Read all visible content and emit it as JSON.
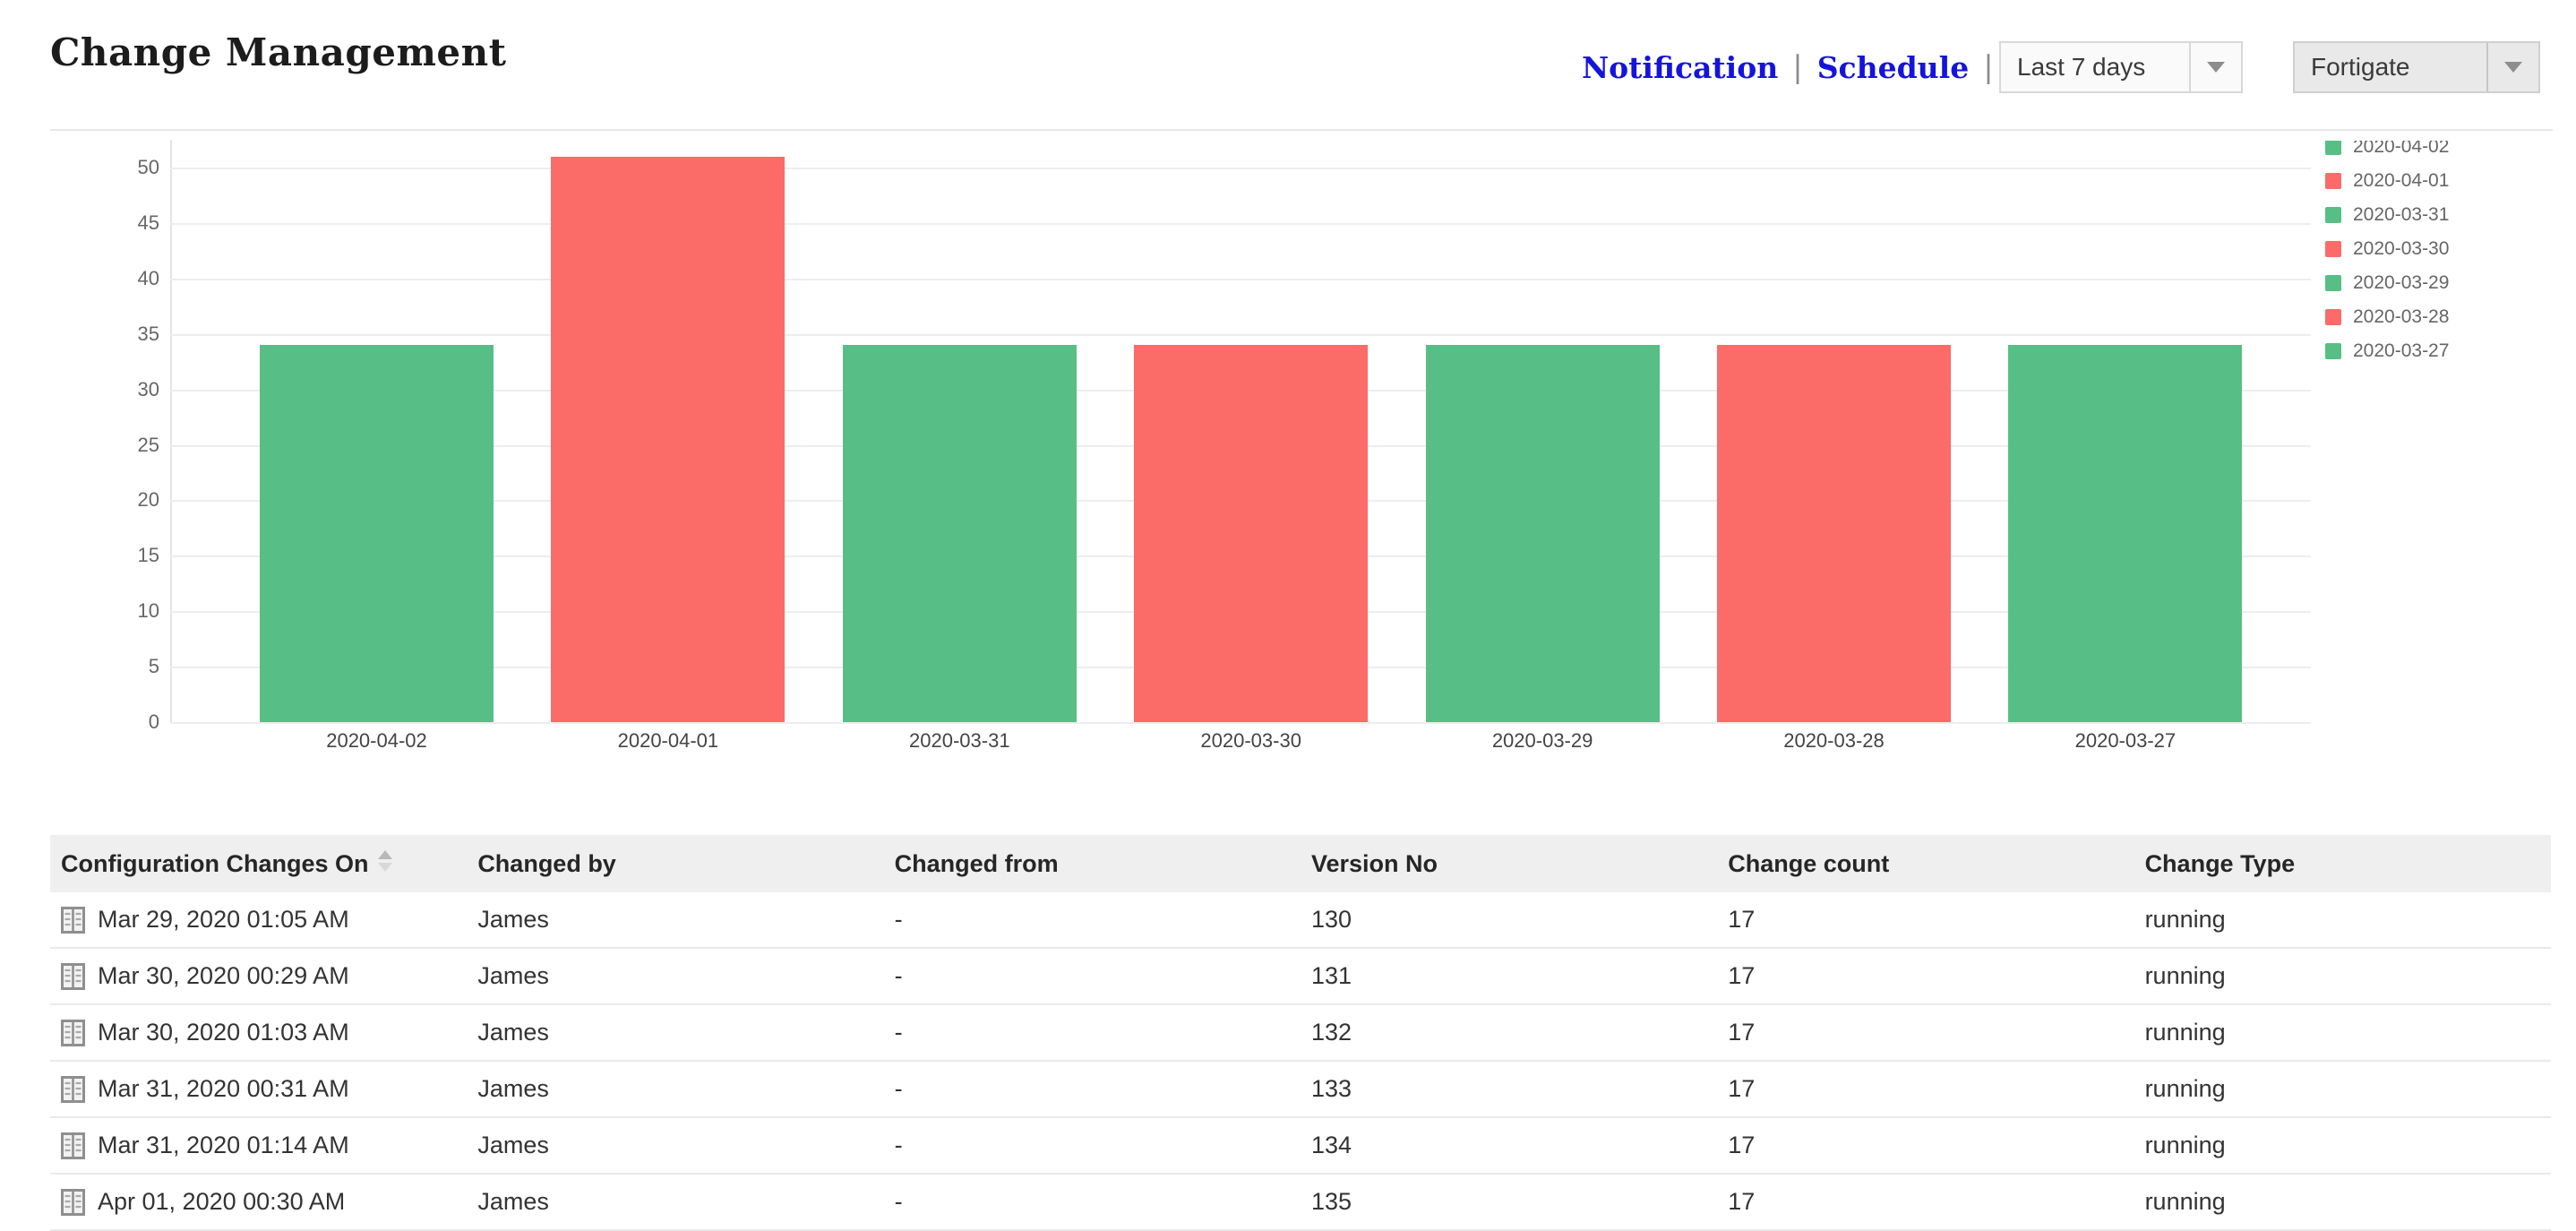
{
  "header": {
    "title": "Change Management",
    "links": [
      {
        "label": "Notification"
      },
      {
        "label": "Schedule"
      }
    ],
    "separator": "|",
    "pdf_icon": "pdf-export-icon",
    "link_color": "#1414db",
    "period_select": {
      "value": "Last 7 days"
    },
    "device_select": {
      "value": "Fortigate"
    }
  },
  "chart_data": {
    "type": "bar",
    "title": "",
    "xlabel": "",
    "ylabel": "",
    "categories": [
      "2020-04-02",
      "2020-04-01",
      "2020-03-31",
      "2020-03-30",
      "2020-03-29",
      "2020-03-28",
      "2020-03-27"
    ],
    "values": [
      34,
      51,
      34,
      34,
      34,
      34,
      34
    ],
    "bar_colors": [
      "#57BF86",
      "#FB6B67",
      "#57BF86",
      "#FB6B67",
      "#57BF86",
      "#FB6B67",
      "#57BF86"
    ],
    "yticks": [
      0,
      5,
      10,
      15,
      20,
      25,
      30,
      35,
      40,
      45,
      50
    ],
    "ylim": [
      0,
      53
    ],
    "grid": true,
    "legend_position": "right",
    "legend": [
      {
        "label": "2020-04-02",
        "color": "#57BF86"
      },
      {
        "label": "2020-04-01",
        "color": "#FB6B67"
      },
      {
        "label": "2020-03-31",
        "color": "#57BF86"
      },
      {
        "label": "2020-03-30",
        "color": "#FB6B67"
      },
      {
        "label": "2020-03-29",
        "color": "#57BF86"
      },
      {
        "label": "2020-03-28",
        "color": "#FB6B67"
      },
      {
        "label": "2020-03-27",
        "color": "#57BF86"
      }
    ]
  },
  "table": {
    "columns": [
      "Configuration Changes On",
      "Changed by",
      "Changed from",
      "Version No",
      "Change count",
      "Change Type"
    ],
    "sorted_column": "Configuration Changes On",
    "rows": [
      {
        "changes_on": "Mar 29, 2020 01:05 AM",
        "changed_by": "James",
        "changed_from": "-",
        "version_no": "130",
        "change_count": "17",
        "change_type": "running"
      },
      {
        "changes_on": "Mar 30, 2020 00:29 AM",
        "changed_by": "James",
        "changed_from": "-",
        "version_no": "131",
        "change_count": "17",
        "change_type": "running"
      },
      {
        "changes_on": "Mar 30, 2020 01:03 AM",
        "changed_by": "James",
        "changed_from": "-",
        "version_no": "132",
        "change_count": "17",
        "change_type": "running"
      },
      {
        "changes_on": "Mar 31, 2020 00:31 AM",
        "changed_by": "James",
        "changed_from": "-",
        "version_no": "133",
        "change_count": "17",
        "change_type": "running"
      },
      {
        "changes_on": "Mar 31, 2020 01:14 AM",
        "changed_by": "James",
        "changed_from": "-",
        "version_no": "134",
        "change_count": "17",
        "change_type": "running"
      },
      {
        "changes_on": "Apr 01, 2020 00:30 AM",
        "changed_by": "James",
        "changed_from": "-",
        "version_no": "135",
        "change_count": "17",
        "change_type": "running"
      }
    ]
  }
}
